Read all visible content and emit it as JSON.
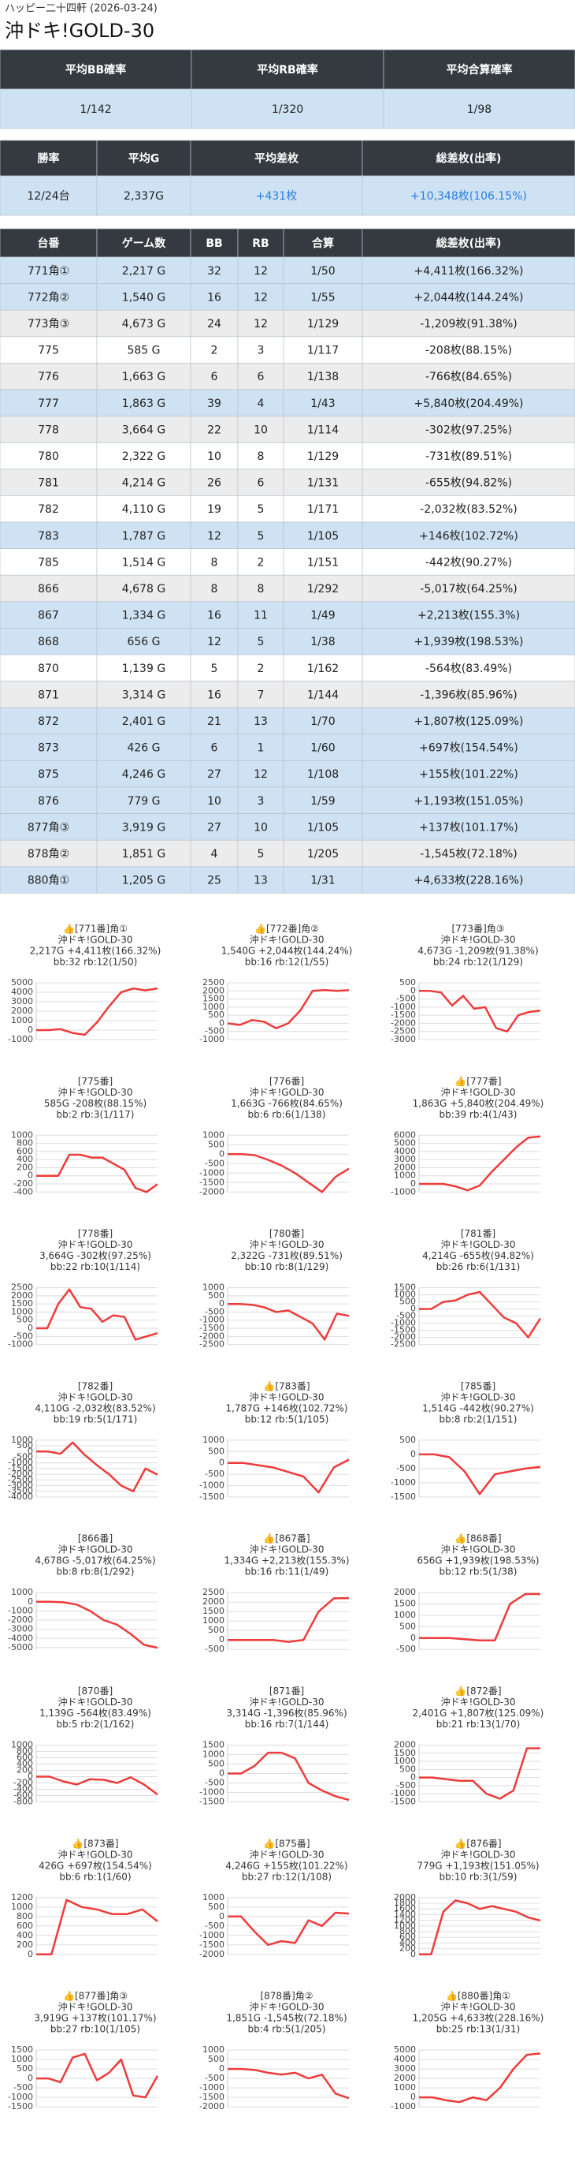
{
  "header": {
    "store": "ハッピー二十四軒 (2026-03-24)",
    "title": "沖ドキ!GOLD-30"
  },
  "summary1": {
    "columns": [
      "平均BB確率",
      "平均RB確率",
      "平均合算確率"
    ],
    "values": [
      "1/142",
      "1/320",
      "1/98"
    ]
  },
  "summary2": {
    "columns": [
      "勝率",
      "平均G",
      "平均差枚",
      "総差枚(出率)"
    ],
    "values": [
      "12/24台",
      "2,337G",
      "+431枚",
      "+10,348枚(106.15%)"
    ],
    "colors": [
      "#222222",
      "#222222",
      "#2a7de1",
      "#2a7de1"
    ]
  },
  "table": {
    "columns": [
      "台番",
      "ゲーム数",
      "BB",
      "RB",
      "合算",
      "総差枚(出率)"
    ],
    "rows": [
      [
        "771角①",
        "2,217 G",
        32,
        12,
        "1/50",
        "+4,411枚(166.32%)"
      ],
      [
        "772角②",
        "1,540 G",
        16,
        12,
        "1/55",
        "+2,044枚(144.24%)"
      ],
      [
        "773角③",
        "4,673 G",
        24,
        12,
        "1/129",
        "-1,209枚(91.38%)"
      ],
      [
        "775",
        "585 G",
        2,
        3,
        "1/117",
        "-208枚(88.15%)"
      ],
      [
        "776",
        "1,663 G",
        6,
        6,
        "1/138",
        "-766枚(84.65%)"
      ],
      [
        "777",
        "1,863 G",
        39,
        4,
        "1/43",
        "+5,840枚(204.49%)"
      ],
      [
        "778",
        "3,664 G",
        22,
        10,
        "1/114",
        "-302枚(97.25%)"
      ],
      [
        "780",
        "2,322 G",
        10,
        8,
        "1/129",
        "-731枚(89.51%)"
      ],
      [
        "781",
        "4,214 G",
        26,
        6,
        "1/131",
        "-655枚(94.82%)"
      ],
      [
        "782",
        "4,110 G",
        19,
        5,
        "1/171",
        "-2,032枚(83.52%)"
      ],
      [
        "783",
        "1,787 G",
        12,
        5,
        "1/105",
        "+146枚(102.72%)"
      ],
      [
        "785",
        "1,514 G",
        8,
        2,
        "1/151",
        "-442枚(90.27%)"
      ],
      [
        "866",
        "4,678 G",
        8,
        8,
        "1/292",
        "-5,017枚(64.25%)"
      ],
      [
        "867",
        "1,334 G",
        16,
        11,
        "1/49",
        "+2,213枚(155.3%)"
      ],
      [
        "868",
        "656 G",
        12,
        5,
        "1/38",
        "+1,939枚(198.53%)"
      ],
      [
        "870",
        "1,139 G",
        5,
        2,
        "1/162",
        "-564枚(83.49%)"
      ],
      [
        "871",
        "3,314 G",
        16,
        7,
        "1/144",
        "-1,396枚(85.96%)"
      ],
      [
        "872",
        "2,401 G",
        21,
        13,
        "1/70",
        "+1,807枚(125.09%)"
      ],
      [
        "873",
        "426 G",
        6,
        1,
        "1/60",
        "+697枚(154.54%)"
      ],
      [
        "875",
        "4,246 G",
        27,
        12,
        "1/108",
        "+155枚(101.22%)"
      ],
      [
        "876",
        "779 G",
        10,
        3,
        "1/59",
        "+1,193枚(151.05%)"
      ],
      [
        "877角③",
        "3,919 G",
        27,
        10,
        "1/105",
        "+137枚(101.17%)"
      ],
      [
        "878角②",
        "1,851 G",
        4,
        5,
        "1/205",
        "-1,545枚(72.18%)"
      ],
      [
        "880角①",
        "1,205 G",
        25,
        13,
        "1/31",
        "+4,633枚(228.16%)"
      ]
    ]
  },
  "chart_data": [
    {
      "type": "line",
      "title": "👍[771番]角①",
      "subtitle": "沖ドキ!GOLD-30",
      "stats": "2,217G +4,411枚(166.32%)",
      "detail": "bb:32 rb:12(1/50)",
      "values": [
        0,
        0,
        100,
        -300,
        -500,
        800,
        2500,
        4000,
        4400,
        4200,
        4411
      ],
      "ylim": [
        -1000,
        5000
      ],
      "yticks": [
        5000,
        4000,
        3000,
        2000,
        1000,
        0,
        -1000
      ],
      "color": "#ee3b3b"
    },
    {
      "type": "line",
      "title": "👍[772番]角②",
      "subtitle": "沖ドキ!GOLD-30",
      "stats": "1,540G +2,044枚(144.24%)",
      "detail": "bb:16 rb:12(1/55)",
      "values": [
        0,
        -100,
        200,
        100,
        -300,
        0,
        800,
        2000,
        2050,
        2000,
        2044
      ],
      "ylim": [
        -1000,
        2500
      ],
      "yticks": [
        2500,
        2000,
        1500,
        1000,
        500,
        0,
        -500,
        -1000
      ],
      "color": "#ee3b3b"
    },
    {
      "type": "line",
      "title": "[773番]角③",
      "subtitle": "沖ドキ!GOLD-30",
      "stats": "4,673G -1,209枚(91.38%)",
      "detail": "bb:24 rb:12(1/129)",
      "values": [
        0,
        0,
        -100,
        -900,
        -300,
        -1100,
        -1000,
        -2300,
        -2500,
        -1500,
        -1300,
        -1209
      ],
      "ylim": [
        -3000,
        500
      ],
      "yticks": [
        500,
        0,
        -500,
        -1000,
        -1500,
        -2000,
        -2500,
        -3000
      ],
      "color": "#ee3b3b"
    },
    {
      "type": "line",
      "title": "[775番]",
      "subtitle": "沖ドキ!GOLD-30",
      "stats": "585G -208枚(88.15%)",
      "detail": "bb:2 rb:3(1/117)",
      "values": [
        0,
        0,
        0,
        520,
        520,
        450,
        450,
        300,
        150,
        -300,
        -400,
        -208
      ],
      "ylim": [
        -400,
        1000
      ],
      "yticks": [
        1000,
        800,
        600,
        400,
        200,
        0,
        -200,
        -400
      ],
      "color": "#ee3b3b"
    },
    {
      "type": "line",
      "title": "[776番]",
      "subtitle": "沖ドキ!GOLD-30",
      "stats": "1,663G -766枚(84.65%)",
      "detail": "bb:6 rb:6(1/138)",
      "values": [
        0,
        0,
        -50,
        -300,
        -600,
        -1000,
        -1500,
        -2000,
        -1200,
        -766
      ],
      "ylim": [
        -2000,
        1000
      ],
      "yticks": [
        1000,
        500,
        0,
        -500,
        -1000,
        -1500,
        -2000
      ],
      "color": "#ee3b3b"
    },
    {
      "type": "line",
      "title": "👍[777番]",
      "subtitle": "沖ドキ!GOLD-30",
      "stats": "1,863G +5,840枚(204.49%)",
      "detail": "bb:39 rb:4(1/43)",
      "values": [
        0,
        0,
        0,
        -300,
        -800,
        -200,
        1500,
        3000,
        4500,
        5700,
        5840
      ],
      "ylim": [
        -1000,
        6000
      ],
      "yticks": [
        6000,
        5000,
        4000,
        3000,
        2000,
        1000,
        0,
        -1000
      ],
      "color": "#ee3b3b"
    },
    {
      "type": "line",
      "title": "[778番]",
      "subtitle": "沖ドキ!GOLD-30",
      "stats": "3,664G -302枚(97.25%)",
      "detail": "bb:22 rb:10(1/114)",
      "values": [
        0,
        0,
        1500,
        2400,
        1300,
        1200,
        400,
        800,
        700,
        -700,
        -500,
        -302
      ],
      "ylim": [
        -1000,
        2500
      ],
      "yticks": [
        2500,
        2000,
        1500,
        1000,
        500,
        0,
        -500,
        -1000
      ],
      "color": "#ee3b3b"
    },
    {
      "type": "line",
      "title": "[780番]",
      "subtitle": "沖ドキ!GOLD-30",
      "stats": "2,322G -731枚(89.51%)",
      "detail": "bb:10 rb:8(1/129)",
      "values": [
        0,
        0,
        -50,
        -200,
        -500,
        -400,
        -800,
        -1200,
        -2200,
        -600,
        -731
      ],
      "ylim": [
        -2500,
        1000
      ],
      "yticks": [
        1000,
        500,
        0,
        -500,
        -1000,
        -1500,
        -2000,
        -2500
      ],
      "color": "#ee3b3b"
    },
    {
      "type": "line",
      "title": "[781番]",
      "subtitle": "沖ドキ!GOLD-30",
      "stats": "4,214G -655枚(94.82%)",
      "detail": "bb:26 rb:6(1/131)",
      "values": [
        0,
        0,
        500,
        600,
        1000,
        1200,
        300,
        -600,
        -1000,
        -2000,
        -655
      ],
      "ylim": [
        -2500,
        1500
      ],
      "yticks": [
        1500,
        1000,
        500,
        0,
        -500,
        -1000,
        -1500,
        -2000,
        -2500
      ],
      "color": "#ee3b3b"
    },
    {
      "type": "line",
      "title": "[782番]",
      "subtitle": "沖ドキ!GOLD-30",
      "stats": "4,110G -2,032枚(83.52%)",
      "detail": "bb:19 rb:5(1/171)",
      "values": [
        0,
        0,
        -200,
        800,
        -300,
        -1200,
        -2000,
        -3000,
        -3500,
        -1500,
        -2032
      ],
      "ylim": [
        -4000,
        1000
      ],
      "yticks": [
        1000,
        500,
        0,
        -500,
        -1000,
        -1500,
        -2000,
        -2500,
        -3000,
        -3500,
        -4000
      ],
      "color": "#ee3b3b"
    },
    {
      "type": "line",
      "title": "👍[783番]",
      "subtitle": "沖ドキ!GOLD-30",
      "stats": "1,787G +146枚(102.72%)",
      "detail": "bb:12 rb:5(1/105)",
      "values": [
        0,
        0,
        -100,
        -200,
        -400,
        -600,
        -1300,
        -200,
        146
      ],
      "ylim": [
        -1500,
        1000
      ],
      "yticks": [
        1000,
        500,
        0,
        -500,
        -1000,
        -1500
      ],
      "color": "#ee3b3b"
    },
    {
      "type": "line",
      "title": "[785番]",
      "subtitle": "沖ドキ!GOLD-30",
      "stats": "1,514G -442枚(90.27%)",
      "detail": "bb:8 rb:2(1/151)",
      "values": [
        0,
        0,
        -100,
        -600,
        -1400,
        -700,
        -600,
        -500,
        -442
      ],
      "ylim": [
        -1500,
        500
      ],
      "yticks": [
        500,
        0,
        -500,
        -1000,
        -1500
      ],
      "color": "#ee3b3b"
    },
    {
      "type": "line",
      "title": "[866番]",
      "subtitle": "沖ドキ!GOLD-30",
      "stats": "4,678G -5,017枚(64.25%)",
      "detail": "bb:8 rb:8(1/292)",
      "values": [
        0,
        0,
        -50,
        -300,
        -1000,
        -2000,
        -2500,
        -3500,
        -4700,
        -5017
      ],
      "ylim": [
        -5200,
        1000
      ],
      "yticks": [
        1000,
        0,
        -1000,
        -2000,
        -3000,
        -4000,
        -5000
      ],
      "color": "#ee3b3b"
    },
    {
      "type": "line",
      "title": "👍[867番]",
      "subtitle": "沖ドキ!GOLD-30",
      "stats": "1,334G +2,213枚(155.3%)",
      "detail": "bb:16 rb:11(1/49)",
      "values": [
        0,
        0,
        0,
        0,
        -100,
        0,
        1500,
        2200,
        2213
      ],
      "ylim": [
        -500,
        2500
      ],
      "yticks": [
        2500,
        2000,
        1500,
        1000,
        500,
        0,
        -500
      ],
      "color": "#ee3b3b"
    },
    {
      "type": "line",
      "title": "👍[868番]",
      "subtitle": "沖ドキ!GOLD-30",
      "stats": "656G +1,939枚(198.53%)",
      "detail": "bb:12 rb:5(1/38)",
      "values": [
        0,
        0,
        0,
        -50,
        -100,
        -100,
        1500,
        1939,
        1939
      ],
      "ylim": [
        -500,
        2000
      ],
      "yticks": [
        2000,
        1500,
        1000,
        500,
        0,
        -500
      ],
      "color": "#ee3b3b"
    },
    {
      "type": "line",
      "title": "[870番]",
      "subtitle": "沖ドキ!GOLD-30",
      "stats": "1,139G -564枚(83.49%)",
      "detail": "bb:5 rb:2(1/162)",
      "values": [
        0,
        0,
        -150,
        -250,
        -80,
        -100,
        -200,
        -20,
        -250,
        -564
      ],
      "ylim": [
        -800,
        1000
      ],
      "yticks": [
        1000,
        800,
        600,
        400,
        200,
        0,
        -200,
        -400,
        -600,
        -800
      ],
      "color": "#ee3b3b"
    },
    {
      "type": "line",
      "title": "[871番]",
      "subtitle": "沖ドキ!GOLD-30",
      "stats": "3,314G -1,396枚(85.96%)",
      "detail": "bb:16 rb:7(1/144)",
      "values": [
        0,
        0,
        400,
        1100,
        1100,
        800,
        -500,
        -900,
        -1200,
        -1396
      ],
      "ylim": [
        -1500,
        1500
      ],
      "yticks": [
        1500,
        1000,
        500,
        0,
        -500,
        -1000,
        -1500
      ],
      "color": "#ee3b3b"
    },
    {
      "type": "line",
      "title": "👍[872番]",
      "subtitle": "沖ドキ!GOLD-30",
      "stats": "2,401G +1,807枚(125.09%)",
      "detail": "bb:21 rb:13(1/70)",
      "values": [
        0,
        0,
        -100,
        -200,
        -200,
        -1000,
        -1300,
        -800,
        1800,
        1807
      ],
      "ylim": [
        -1500,
        2000
      ],
      "yticks": [
        2000,
        1500,
        1000,
        500,
        0,
        -500,
        -1000,
        -1500
      ],
      "color": "#ee3b3b"
    },
    {
      "type": "line",
      "title": "👍[873番]",
      "subtitle": "沖ドキ!GOLD-30",
      "stats": "426G +697枚(154.54%)",
      "detail": "bb:6 rb:1(1/60)",
      "values": [
        0,
        0,
        1150,
        1000,
        950,
        850,
        850,
        950,
        697
      ],
      "ylim": [
        0,
        1200
      ],
      "yticks": [
        1200,
        1000,
        800,
        600,
        400,
        200,
        0
      ],
      "color": "#ee3b3b"
    },
    {
      "type": "line",
      "title": "👍[875番]",
      "subtitle": "沖ドキ!GOLD-30",
      "stats": "4,246G +155枚(101.22%)",
      "detail": "bb:27 rb:12(1/108)",
      "values": [
        0,
        0,
        -800,
        -1500,
        -1300,
        -1400,
        -200,
        -500,
        200,
        155
      ],
      "ylim": [
        -2000,
        1000
      ],
      "yticks": [
        1000,
        500,
        0,
        -500,
        -1000,
        -1500,
        -2000
      ],
      "color": "#ee3b3b"
    },
    {
      "type": "line",
      "title": "👍[876番]",
      "subtitle": "沖ドキ!GOLD-30",
      "stats": "779G +1,193枚(151.05%)",
      "detail": "bb:10 rb:3(1/59)",
      "values": [
        0,
        0,
        1500,
        1900,
        1800,
        1600,
        1700,
        1600,
        1500,
        1300,
        1193
      ],
      "ylim": [
        0,
        2000
      ],
      "yticks": [
        2000,
        1800,
        1600,
        1400,
        1200,
        1000,
        800,
        600,
        400,
        200,
        0
      ],
      "color": "#ee3b3b"
    },
    {
      "type": "line",
      "title": "👍[877番]角③",
      "subtitle": "沖ドキ!GOLD-30",
      "stats": "3,919G +137枚(101.17%)",
      "detail": "bb:27 rb:10(1/105)",
      "values": [
        0,
        0,
        -200,
        1100,
        1300,
        -100,
        300,
        1000,
        -900,
        -1000,
        137
      ],
      "ylim": [
        -1500,
        1500
      ],
      "yticks": [
        1500,
        1000,
        500,
        0,
        -500,
        -1000,
        -1500
      ],
      "color": "#ee3b3b"
    },
    {
      "type": "line",
      "title": "[878番]角②",
      "subtitle": "沖ドキ!GOLD-30",
      "stats": "1,851G -1,545枚(72.18%)",
      "detail": "bb:4 rb:5(1/205)",
      "values": [
        0,
        0,
        -50,
        -200,
        -300,
        -200,
        -500,
        -300,
        -1300,
        -1545
      ],
      "ylim": [
        -2000,
        1000
      ],
      "yticks": [
        1000,
        500,
        0,
        -500,
        -1000,
        -1500,
        -2000
      ],
      "color": "#ee3b3b"
    },
    {
      "type": "line",
      "title": "👍[880番]角①",
      "subtitle": "沖ドキ!GOLD-30",
      "stats": "1,205G +4,633枚(228.16%)",
      "detail": "bb:25 rb:13(1/31)",
      "values": [
        0,
        0,
        -300,
        -500,
        0,
        -300,
        1000,
        3000,
        4500,
        4633
      ],
      "ylim": [
        -1000,
        5000
      ],
      "yticks": [
        5000,
        4000,
        3000,
        2000,
        1000,
        0,
        -1000
      ],
      "color": "#ee3b3b"
    }
  ]
}
